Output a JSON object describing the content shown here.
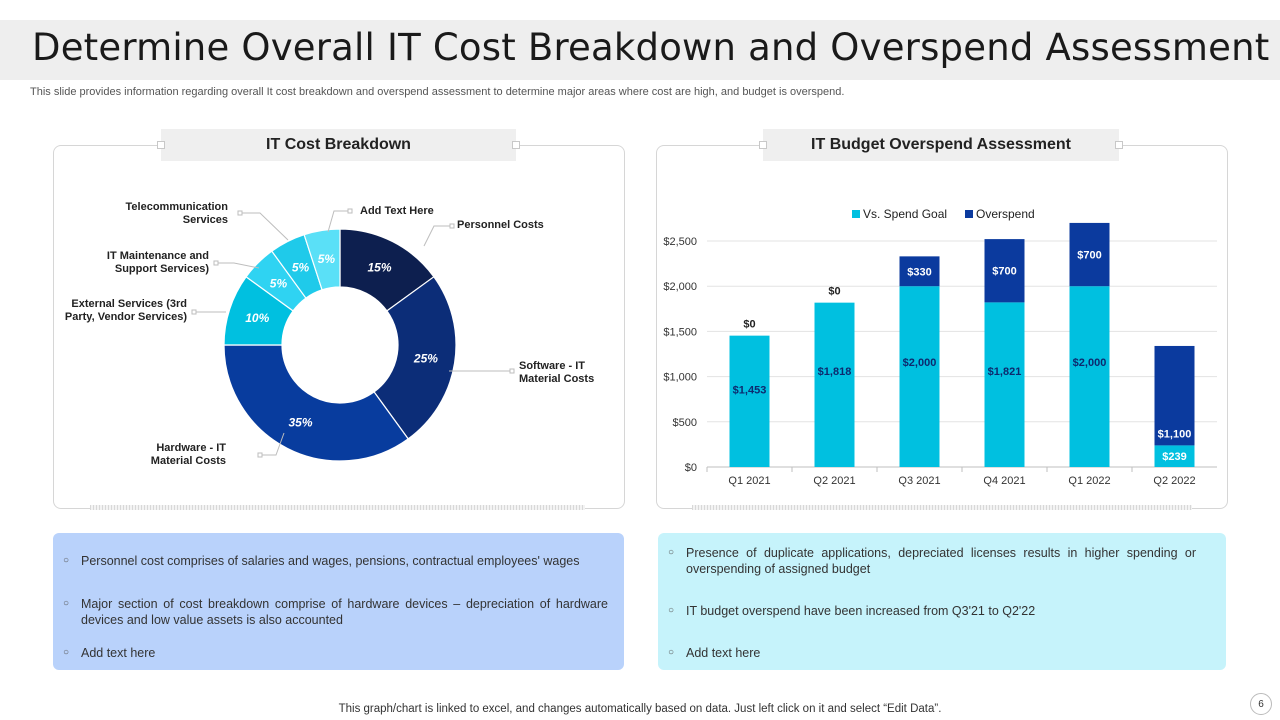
{
  "title": "Determine Overall IT Cost Breakdown and Overspend Assessment",
  "subtitle": "This slide provides information regarding overall It cost breakdown and overspend assessment to determine major areas where cost are high, and budget is overspend.",
  "left_panel": {
    "header": "IT Cost Breakdown",
    "notes": [
      "Personnel cost comprises of salaries and wages, pensions, contractual employees' wages",
      "Major section of cost breakdown comprise of hardware devices – depreciation of hardware devices and low value assets is also accounted",
      "Add text here"
    ]
  },
  "right_panel": {
    "header": "IT Budget Overspend Assessment",
    "notes": [
      "Presence of duplicate applications, depreciated licenses results in higher spending or overspending  of assigned budget",
      "IT budget overspend  have been increased from Q3'21 to Q2'22",
      "Add text here"
    ]
  },
  "bullet_glyph": "○",
  "footer": "This graph/chart is linked to excel,  and changes automatically based on data. Just left click on it and select “Edit Data”.",
  "page_number": "6",
  "colors": {
    "navy": "#0d1f4f",
    "dark_blue": "#0c2d78",
    "blue": "#083c9e",
    "cyan": "#00c0e0",
    "light_cyan": "#2fd3f2",
    "pale_cyan": "#5ae0f7",
    "left_note_bg": "#b9d2fb",
    "right_note_bg": "#c6f3fb"
  },
  "chart_data": [
    {
      "type": "pie",
      "variant": "donut",
      "title": "IT Cost Breakdown",
      "slices": [
        {
          "label": "Personnel Costs",
          "value": 15,
          "display": "15%",
          "color": "#0d1f4f"
        },
        {
          "label": "Software - IT Material Costs",
          "value": 25,
          "display": "25%",
          "color": "#0c2d78"
        },
        {
          "label": "Hardware - IT Material Costs",
          "value": 35,
          "display": "35%",
          "color": "#083c9e"
        },
        {
          "label": "External Services (3rd Party, Vendor Services)",
          "value": 10,
          "display": "10%",
          "color": "#00c0e0"
        },
        {
          "label": "IT Maintenance and Support Services)",
          "value": 5,
          "display": "5%",
          "color": "#2fd3f2"
        },
        {
          "label": "Telecommunication Services",
          "value": 5,
          "display": "5%",
          "color": "#1fcaea"
        },
        {
          "label": "Add Text Here",
          "value": 5,
          "display": "5%",
          "color": "#5ae0f7"
        }
      ]
    },
    {
      "type": "bar",
      "stacked": true,
      "title": "IT Budget Overspend Assessment",
      "categories": [
        "Q1 2021",
        "Q2 2021",
        "Q3 2021",
        "Q4 2021",
        "Q1 2022",
        "Q2 2022"
      ],
      "series": [
        {
          "name": "Vs. Spend Goal",
          "color": "#00c0e0",
          "values": [
            1453,
            1818,
            2000,
            1821,
            2000,
            239
          ],
          "labels": [
            "$1,453",
            "$1,818",
            "$2,000",
            "$1,821",
            "$2,000",
            "$239"
          ]
        },
        {
          "name": "Overspend",
          "color": "#0b3a9e",
          "values": [
            0,
            0,
            330,
            700,
            700,
            1100
          ],
          "labels": [
            "$0",
            "$0",
            "$330",
            "$700",
            "$700",
            "$1,100"
          ]
        }
      ],
      "ylim": [
        0,
        2500
      ],
      "yticks": [
        0,
        500,
        1000,
        1500,
        2000,
        2500
      ],
      "ytick_labels": [
        "$0",
        "$500",
        "$1,000",
        "$1,500",
        "$2,000",
        "$2,500"
      ],
      "legend": "top-center",
      "grid": true
    }
  ]
}
